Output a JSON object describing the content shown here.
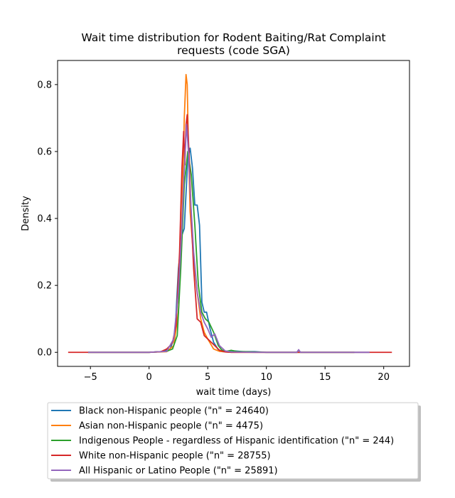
{
  "chart_data": {
    "type": "line",
    "title_lines": [
      "Wait time distribution  for Rodent Baiting/Rat Complaint",
      "requests (code SGA)"
    ],
    "xlabel": "wait time (days)",
    "ylabel": "Density",
    "xlim": [
      -7.8,
      22.2
    ],
    "ylim": [
      -0.042,
      0.872
    ],
    "xticks": [
      -5,
      0,
      5,
      10,
      15,
      20
    ],
    "yticks": [
      0.0,
      0.2,
      0.4,
      0.6,
      0.8
    ],
    "xtick_labels": [
      "−5",
      "0",
      "5",
      "10",
      "15",
      "20"
    ],
    "ytick_labels": [
      "0.0",
      "0.2",
      "0.4",
      "0.6",
      "0.8"
    ],
    "grid": false,
    "legend_position": "below the plot",
    "series": [
      {
        "name": "Black non-Hispanic people (\"n\" = 24640)",
        "color": "#1f77b4",
        "x": [
          -5.2,
          0,
          1,
          1.8,
          2.2,
          2.5,
          2.8,
          3.0,
          3.3,
          3.5,
          3.7,
          3.9,
          4.1,
          4.3,
          4.5,
          4.7,
          4.9,
          5.2,
          5.5,
          5.9,
          6.3,
          7.0,
          8.0,
          9.0,
          10.0,
          12.6,
          12.75,
          12.9,
          14.0,
          17.5,
          18.8
        ],
        "y": [
          0,
          0,
          0.002,
          0.01,
          0.05,
          0.25,
          0.35,
          0.37,
          0.58,
          0.61,
          0.55,
          0.44,
          0.44,
          0.38,
          0.15,
          0.12,
          0.12,
          0.07,
          0.03,
          0.008,
          0.002,
          0.005,
          0.002,
          0.002,
          0,
          0,
          0.007,
          0,
          0,
          0,
          0
        ]
      },
      {
        "name": "Asian non-Hispanic people (\"n\" = 4475)",
        "color": "#ff7f0e",
        "x": [
          -5.2,
          0,
          1.5,
          2.1,
          2.5,
          2.8,
          3.0,
          3.15,
          3.25,
          3.35,
          3.5,
          3.8,
          4.1,
          4.4,
          4.7,
          5.0,
          5.5,
          6.0,
          7.0,
          9.0,
          12.0,
          15.0,
          17.5
        ],
        "y": [
          0,
          0,
          0.002,
          0.02,
          0.12,
          0.4,
          0.7,
          0.83,
          0.8,
          0.62,
          0.42,
          0.28,
          0.18,
          0.1,
          0.06,
          0.04,
          0.01,
          0.003,
          0,
          0,
          0,
          0,
          0
        ]
      },
      {
        "name": "Indigenous People - regardless of Hispanic identification (\"n\" = 244)",
        "color": "#2ca02c",
        "x": [
          -5.2,
          0,
          1.5,
          2.0,
          2.4,
          2.7,
          3.0,
          3.3,
          3.6,
          3.9,
          4.2,
          4.5,
          4.8,
          5.1,
          5.5,
          5.9,
          6.2,
          6.6,
          7.0,
          7.5,
          8.0,
          10.0,
          12.0,
          15.0,
          17.5
        ],
        "y": [
          0,
          0,
          0.003,
          0.01,
          0.05,
          0.25,
          0.5,
          0.6,
          0.53,
          0.38,
          0.2,
          0.12,
          0.1,
          0.09,
          0.06,
          0.02,
          0.007,
          0.003,
          0.006,
          0.002,
          0.002,
          0,
          0,
          0,
          0
        ]
      },
      {
        "name": "White non-Hispanic people (\"n\" = 28755)",
        "color": "#d62728",
        "x": [
          -6.9,
          -4.0,
          0,
          1.0,
          1.5,
          1.8,
          2.0,
          2.3,
          2.6,
          2.8,
          2.95,
          3.05,
          3.15,
          3.25,
          3.4,
          3.6,
          3.8,
          4.1,
          4.4,
          4.7,
          5.0,
          5.3,
          5.6,
          6.0,
          6.5,
          7.0,
          10.0,
          15.0,
          20.7
        ],
        "y": [
          0,
          0,
          0,
          0.002,
          0.01,
          0.02,
          0.03,
          0.08,
          0.3,
          0.55,
          0.66,
          0.56,
          0.68,
          0.71,
          0.6,
          0.4,
          0.25,
          0.1,
          0.09,
          0.05,
          0.04,
          0.03,
          0.02,
          0.006,
          0.001,
          0,
          0,
          0,
          0
        ]
      },
      {
        "name": "All Hispanic or Latino People (\"n\" = 25891)",
        "color": "#9467bd",
        "x": [
          -5.2,
          0,
          1.5,
          2.1,
          2.5,
          2.8,
          3.0,
          3.2,
          3.35,
          3.5,
          3.8,
          4.1,
          4.4,
          4.7,
          5.0,
          5.3,
          5.6,
          6.0,
          6.5,
          7.0,
          9.0,
          12.6,
          12.75,
          12.9,
          15.0,
          17.5,
          18.8
        ],
        "y": [
          0,
          0,
          0.003,
          0.04,
          0.18,
          0.38,
          0.55,
          0.68,
          0.6,
          0.48,
          0.3,
          0.18,
          0.12,
          0.09,
          0.07,
          0.045,
          0.055,
          0.02,
          0.004,
          0.001,
          0,
          0,
          0.008,
          0,
          0,
          0,
          0
        ]
      }
    ]
  }
}
